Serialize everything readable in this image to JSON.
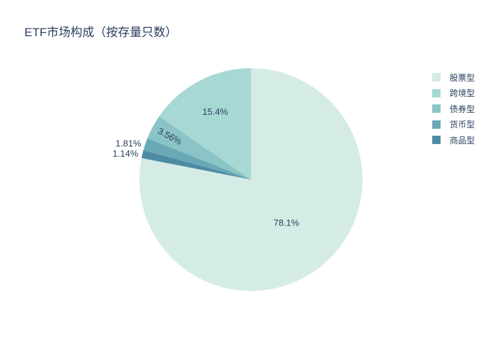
{
  "title": "ETF市场构成（按存量只数）",
  "legend": {
    "position": "right",
    "items": [
      {
        "label": "股票型"
      },
      {
        "label": "跨境型"
      },
      {
        "label": "债券型"
      },
      {
        "label": "货币型"
      },
      {
        "label": "商品型"
      }
    ]
  },
  "chart_data": {
    "type": "pie",
    "title": "ETF市场构成（按存量只数）",
    "labels": [
      "股票型",
      "跨境型",
      "债券型",
      "货币型",
      "商品型"
    ],
    "values": [
      78.1,
      15.4,
      3.56,
      1.81,
      1.14
    ],
    "display_labels": [
      "78.1%",
      "15.4%",
      "3.56%",
      "1.81%",
      "1.14%"
    ],
    "colors": [
      "#d5ece6",
      "#a8d8d3",
      "#8ac4c6",
      "#69a9b5",
      "#4d8ba3"
    ],
    "legend_position": "right",
    "start_angle_deg": 0,
    "largest_slice_direction": "clockwise-from-top",
    "other_slices_direction": "counterclockwise-from-top",
    "label_placement": [
      "inside",
      "inside",
      "inside-rotated",
      "outside",
      "outside"
    ]
  },
  "colors": {
    "text": "#2a3f5f",
    "background": "#ffffff"
  }
}
